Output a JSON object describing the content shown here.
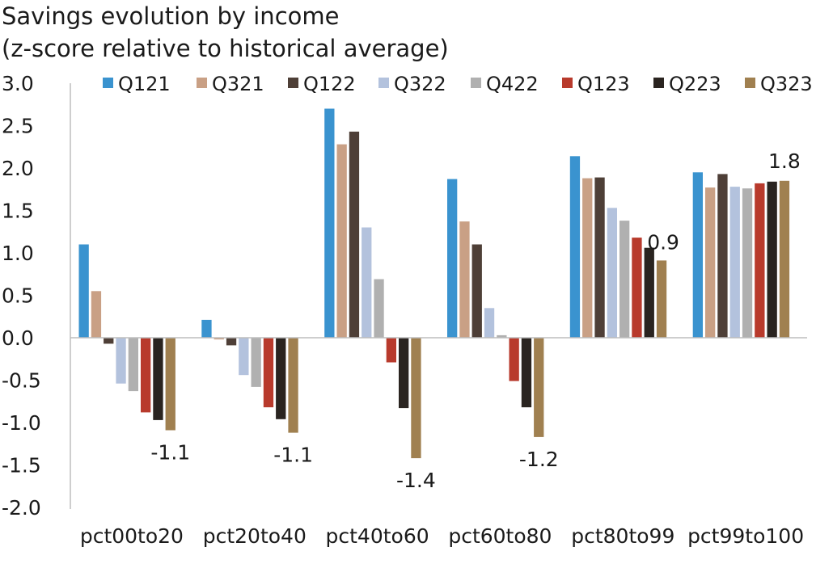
{
  "chart_data": {
    "type": "bar",
    "title": "Savings evolution by income",
    "subtitle": "(z-score relative to historical average)",
    "categories": [
      "pct00to20",
      "pct20to40",
      "pct40to60",
      "pct60to80",
      "pct80to99",
      "pct99to100"
    ],
    "series": [
      {
        "name": "Q121",
        "color": "#3A93CF",
        "values": [
          1.1,
          0.21,
          2.7,
          1.87,
          2.14,
          1.95
        ]
      },
      {
        "name": "Q321",
        "color": "#C9A085",
        "values": [
          0.55,
          -0.02,
          2.28,
          1.37,
          1.88,
          1.77
        ]
      },
      {
        "name": "Q122",
        "color": "#4E3F37",
        "values": [
          -0.07,
          -0.09,
          2.43,
          1.1,
          1.89,
          1.93
        ]
      },
      {
        "name": "Q322",
        "color": "#B3C2DD",
        "values": [
          -0.54,
          -0.44,
          1.3,
          0.35,
          1.53,
          1.78
        ]
      },
      {
        "name": "Q422",
        "color": "#B0B0B0",
        "values": [
          -0.63,
          -0.58,
          0.69,
          0.03,
          1.38,
          1.76
        ]
      },
      {
        "name": "Q123",
        "color": "#B83A2C",
        "values": [
          -0.88,
          -0.82,
          -0.29,
          -0.51,
          1.18,
          1.82
        ]
      },
      {
        "name": "Q223",
        "color": "#2A2420",
        "values": [
          -0.97,
          -0.96,
          -0.83,
          -0.82,
          1.06,
          1.84
        ]
      },
      {
        "name": "Q323",
        "color": "#A08050",
        "values": [
          -1.09,
          -1.12,
          -1.42,
          -1.17,
          0.91,
          1.85
        ]
      }
    ],
    "ylim": [
      -2.0,
      3.0
    ],
    "yticks": [
      "3.0",
      "2.5",
      "2.0",
      "1.5",
      "1.0",
      "0.5",
      "0.0",
      "-0.5",
      "-1.0",
      "-1.5",
      "-2.0"
    ],
    "annotations": [
      "-1.1",
      "-1.1",
      "-1.4",
      "-1.2",
      "0.9",
      "1.8"
    ],
    "legend_position": "top",
    "grid": false,
    "xlabel": "",
    "ylabel": ""
  }
}
